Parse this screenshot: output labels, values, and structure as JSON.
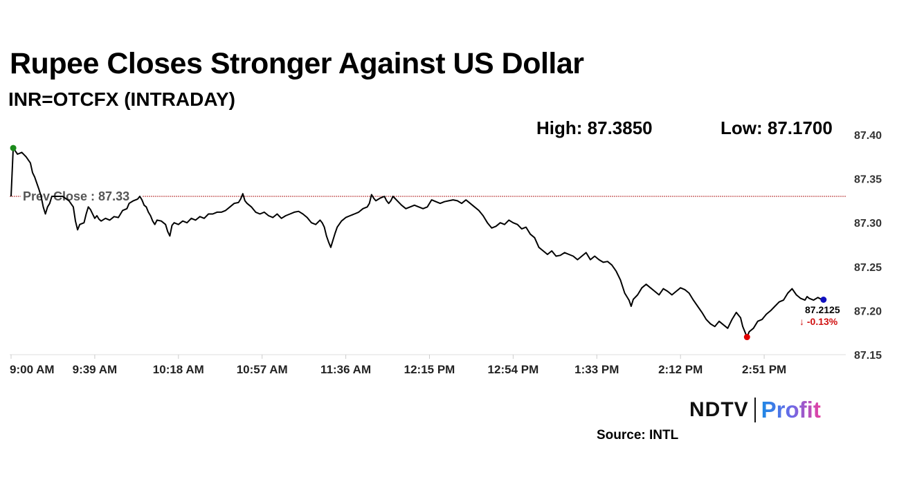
{
  "header": {
    "title": "Rupee Closes Stronger Against US Dollar",
    "subtitle": "INR=OTCFX (INTRADAY)",
    "high_label": "High: 87.3850",
    "low_label": "Low: 87.1700"
  },
  "footer": {
    "logo_text_1": "NDTV",
    "logo_text_2": "Profit",
    "source": "Source: INTL"
  },
  "colors": {
    "line": "#000000",
    "prev_close_line": "#b22222",
    "high_marker": "#1a8a1a",
    "low_marker": "#e00000",
    "last_marker": "#1010c0",
    "change_text": "#d01010"
  },
  "chart_data": {
    "type": "line",
    "xlabel": "",
    "ylabel": "",
    "ylim": [
      87.15,
      87.4
    ],
    "y_ticks": [
      "87.40",
      "87.35",
      "87.30",
      "87.25",
      "87.20",
      "87.15"
    ],
    "x_ticks": [
      "9:00 AM",
      "9:39 AM",
      "10:18 AM",
      "10:57 AM",
      "11:36 AM",
      "12:15 PM",
      "12:54 PM",
      "1:33 PM",
      "2:12 PM",
      "2:51 PM"
    ],
    "grid": false,
    "prev_close": {
      "value": 87.33,
      "label": "Prev Close : 87.33"
    },
    "high": {
      "t": 1,
      "value": 87.385
    },
    "low": {
      "t": 343,
      "value": 87.17
    },
    "last": {
      "value_label": "87.2125",
      "change_label": "↓ -0.13%",
      "value": 87.2125
    },
    "x_start_minutes": 0,
    "series": [
      {
        "points": [
          [
            0,
            87.33
          ],
          [
            1,
            87.385
          ],
          [
            3,
            87.378
          ],
          [
            5,
            87.38
          ],
          [
            7,
            87.375
          ],
          [
            9,
            87.368
          ],
          [
            10,
            87.357
          ],
          [
            11,
            87.352
          ],
          [
            12,
            87.345
          ],
          [
            13,
            87.338
          ],
          [
            14,
            87.33
          ],
          [
            15,
            87.318
          ],
          [
            16,
            87.31
          ],
          [
            17,
            87.318
          ],
          [
            18,
            87.322
          ],
          [
            19,
            87.33
          ],
          [
            21,
            87.33
          ],
          [
            24,
            87.33
          ],
          [
            27,
            87.325
          ],
          [
            29,
            87.318
          ],
          [
            30,
            87.302
          ],
          [
            31,
            87.292
          ],
          [
            32,
            87.298
          ],
          [
            34,
            87.3
          ],
          [
            35,
            87.31
          ],
          [
            36,
            87.318
          ],
          [
            37,
            87.315
          ],
          [
            38,
            87.31
          ],
          [
            39,
            87.305
          ],
          [
            40,
            87.308
          ],
          [
            41,
            87.304
          ],
          [
            42,
            87.302
          ],
          [
            44,
            87.305
          ],
          [
            46,
            87.303
          ],
          [
            48,
            87.307
          ],
          [
            50,
            87.306
          ],
          [
            51,
            87.31
          ],
          [
            52,
            87.314
          ],
          [
            54,
            87.316
          ],
          [
            55,
            87.322
          ],
          [
            57,
            87.325
          ],
          [
            59,
            87.327
          ],
          [
            60,
            87.33
          ],
          [
            61,
            87.326
          ],
          [
            62,
            87.32
          ],
          [
            63,
            87.318
          ],
          [
            64,
            87.312
          ],
          [
            65,
            87.308
          ],
          [
            66,
            87.302
          ],
          [
            67,
            87.298
          ],
          [
            68,
            87.303
          ],
          [
            70,
            87.302
          ],
          [
            72,
            87.298
          ],
          [
            73,
            87.29
          ],
          [
            74,
            87.285
          ],
          [
            75,
            87.297
          ],
          [
            76,
            87.3
          ],
          [
            78,
            87.298
          ],
          [
            80,
            87.302
          ],
          [
            82,
            87.3
          ],
          [
            84,
            87.305
          ],
          [
            86,
            87.303
          ],
          [
            88,
            87.307
          ],
          [
            90,
            87.305
          ],
          [
            92,
            87.31
          ],
          [
            94,
            87.31
          ],
          [
            96,
            87.312
          ],
          [
            98,
            87.312
          ],
          [
            100,
            87.314
          ],
          [
            102,
            87.318
          ],
          [
            104,
            87.322
          ],
          [
            106,
            87.323
          ],
          [
            107,
            87.327
          ],
          [
            108,
            87.333
          ],
          [
            109,
            87.325
          ],
          [
            110,
            87.322
          ],
          [
            112,
            87.318
          ],
          [
            114,
            87.312
          ],
          [
            116,
            87.31
          ],
          [
            118,
            87.312
          ],
          [
            120,
            87.308
          ],
          [
            122,
            87.306
          ],
          [
            124,
            87.31
          ],
          [
            126,
            87.305
          ],
          [
            128,
            87.308
          ],
          [
            130,
            87.31
          ],
          [
            132,
            87.312
          ],
          [
            134,
            87.313
          ],
          [
            136,
            87.31
          ],
          [
            138,
            87.306
          ],
          [
            140,
            87.3
          ],
          [
            142,
            87.298
          ],
          [
            144,
            87.303
          ],
          [
            145,
            87.3
          ],
          [
            146,
            87.295
          ],
          [
            147,
            87.285
          ],
          [
            148,
            87.278
          ],
          [
            149,
            87.272
          ],
          [
            150,
            87.28
          ],
          [
            151,
            87.288
          ],
          [
            152,
            87.295
          ],
          [
            154,
            87.302
          ],
          [
            156,
            87.306
          ],
          [
            158,
            87.308
          ],
          [
            160,
            87.31
          ],
          [
            162,
            87.312
          ],
          [
            164,
            87.316
          ],
          [
            166,
            87.318
          ],
          [
            167,
            87.322
          ],
          [
            168,
            87.332
          ],
          [
            169,
            87.328
          ],
          [
            170,
            87.325
          ],
          [
            172,
            87.328
          ],
          [
            174,
            87.33
          ],
          [
            175,
            87.325
          ],
          [
            176,
            87.322
          ],
          [
            177,
            87.325
          ],
          [
            178,
            87.33
          ],
          [
            180,
            87.325
          ],
          [
            182,
            87.32
          ],
          [
            184,
            87.316
          ],
          [
            186,
            87.318
          ],
          [
            188,
            87.32
          ],
          [
            190,
            87.318
          ],
          [
            192,
            87.316
          ],
          [
            194,
            87.318
          ],
          [
            196,
            87.326
          ],
          [
            198,
            87.324
          ],
          [
            200,
            87.322
          ],
          [
            202,
            87.324
          ],
          [
            204,
            87.325
          ],
          [
            206,
            87.326
          ],
          [
            208,
            87.325
          ],
          [
            210,
            87.322
          ],
          [
            212,
            87.326
          ],
          [
            214,
            87.322
          ],
          [
            216,
            87.318
          ],
          [
            218,
            87.314
          ],
          [
            220,
            87.308
          ],
          [
            222,
            87.3
          ],
          [
            224,
            87.294
          ],
          [
            226,
            87.296
          ],
          [
            228,
            87.3
          ],
          [
            230,
            87.298
          ],
          [
            232,
            87.303
          ],
          [
            234,
            87.3
          ],
          [
            236,
            87.298
          ],
          [
            238,
            87.293
          ],
          [
            240,
            87.295
          ],
          [
            242,
            87.287
          ],
          [
            244,
            87.283
          ],
          [
            246,
            87.272
          ],
          [
            248,
            87.268
          ],
          [
            250,
            87.264
          ],
          [
            252,
            87.268
          ],
          [
            254,
            87.262
          ],
          [
            256,
            87.263
          ],
          [
            258,
            87.266
          ],
          [
            260,
            87.264
          ],
          [
            262,
            87.262
          ],
          [
            264,
            87.258
          ],
          [
            266,
            87.262
          ],
          [
            268,
            87.266
          ],
          [
            270,
            87.258
          ],
          [
            272,
            87.262
          ],
          [
            274,
            87.258
          ],
          [
            276,
            87.255
          ],
          [
            278,
            87.256
          ],
          [
            280,
            87.252
          ],
          [
            282,
            87.245
          ],
          [
            284,
            87.235
          ],
          [
            286,
            87.22
          ],
          [
            288,
            87.212
          ],
          [
            289,
            87.205
          ],
          [
            290,
            87.213
          ],
          [
            292,
            87.218
          ],
          [
            294,
            87.226
          ],
          [
            296,
            87.23
          ],
          [
            298,
            87.226
          ],
          [
            300,
            87.222
          ],
          [
            302,
            87.218
          ],
          [
            304,
            87.225
          ],
          [
            306,
            87.222
          ],
          [
            308,
            87.218
          ],
          [
            310,
            87.222
          ],
          [
            312,
            87.226
          ],
          [
            314,
            87.224
          ],
          [
            316,
            87.22
          ],
          [
            318,
            87.212
          ],
          [
            320,
            87.205
          ],
          [
            322,
            87.198
          ],
          [
            324,
            87.19
          ],
          [
            326,
            87.185
          ],
          [
            328,
            87.182
          ],
          [
            330,
            87.188
          ],
          [
            332,
            87.184
          ],
          [
            334,
            87.18
          ],
          [
            336,
            87.19
          ],
          [
            338,
            87.198
          ],
          [
            340,
            87.192
          ],
          [
            341,
            87.182
          ],
          [
            342,
            87.176
          ],
          [
            343,
            87.17
          ],
          [
            344,
            87.176
          ],
          [
            346,
            87.18
          ],
          [
            348,
            87.188
          ],
          [
            350,
            87.19
          ],
          [
            352,
            87.196
          ],
          [
            354,
            87.2
          ],
          [
            356,
            87.205
          ],
          [
            358,
            87.21
          ],
          [
            360,
            87.212
          ],
          [
            362,
            87.22
          ],
          [
            364,
            87.225
          ],
          [
            366,
            87.218
          ],
          [
            368,
            87.214
          ],
          [
            370,
            87.212
          ],
          [
            371,
            87.216
          ],
          [
            372,
            87.214
          ],
          [
            374,
            87.212
          ],
          [
            376,
            87.215
          ],
          [
            378,
            87.2125
          ]
        ]
      }
    ]
  }
}
